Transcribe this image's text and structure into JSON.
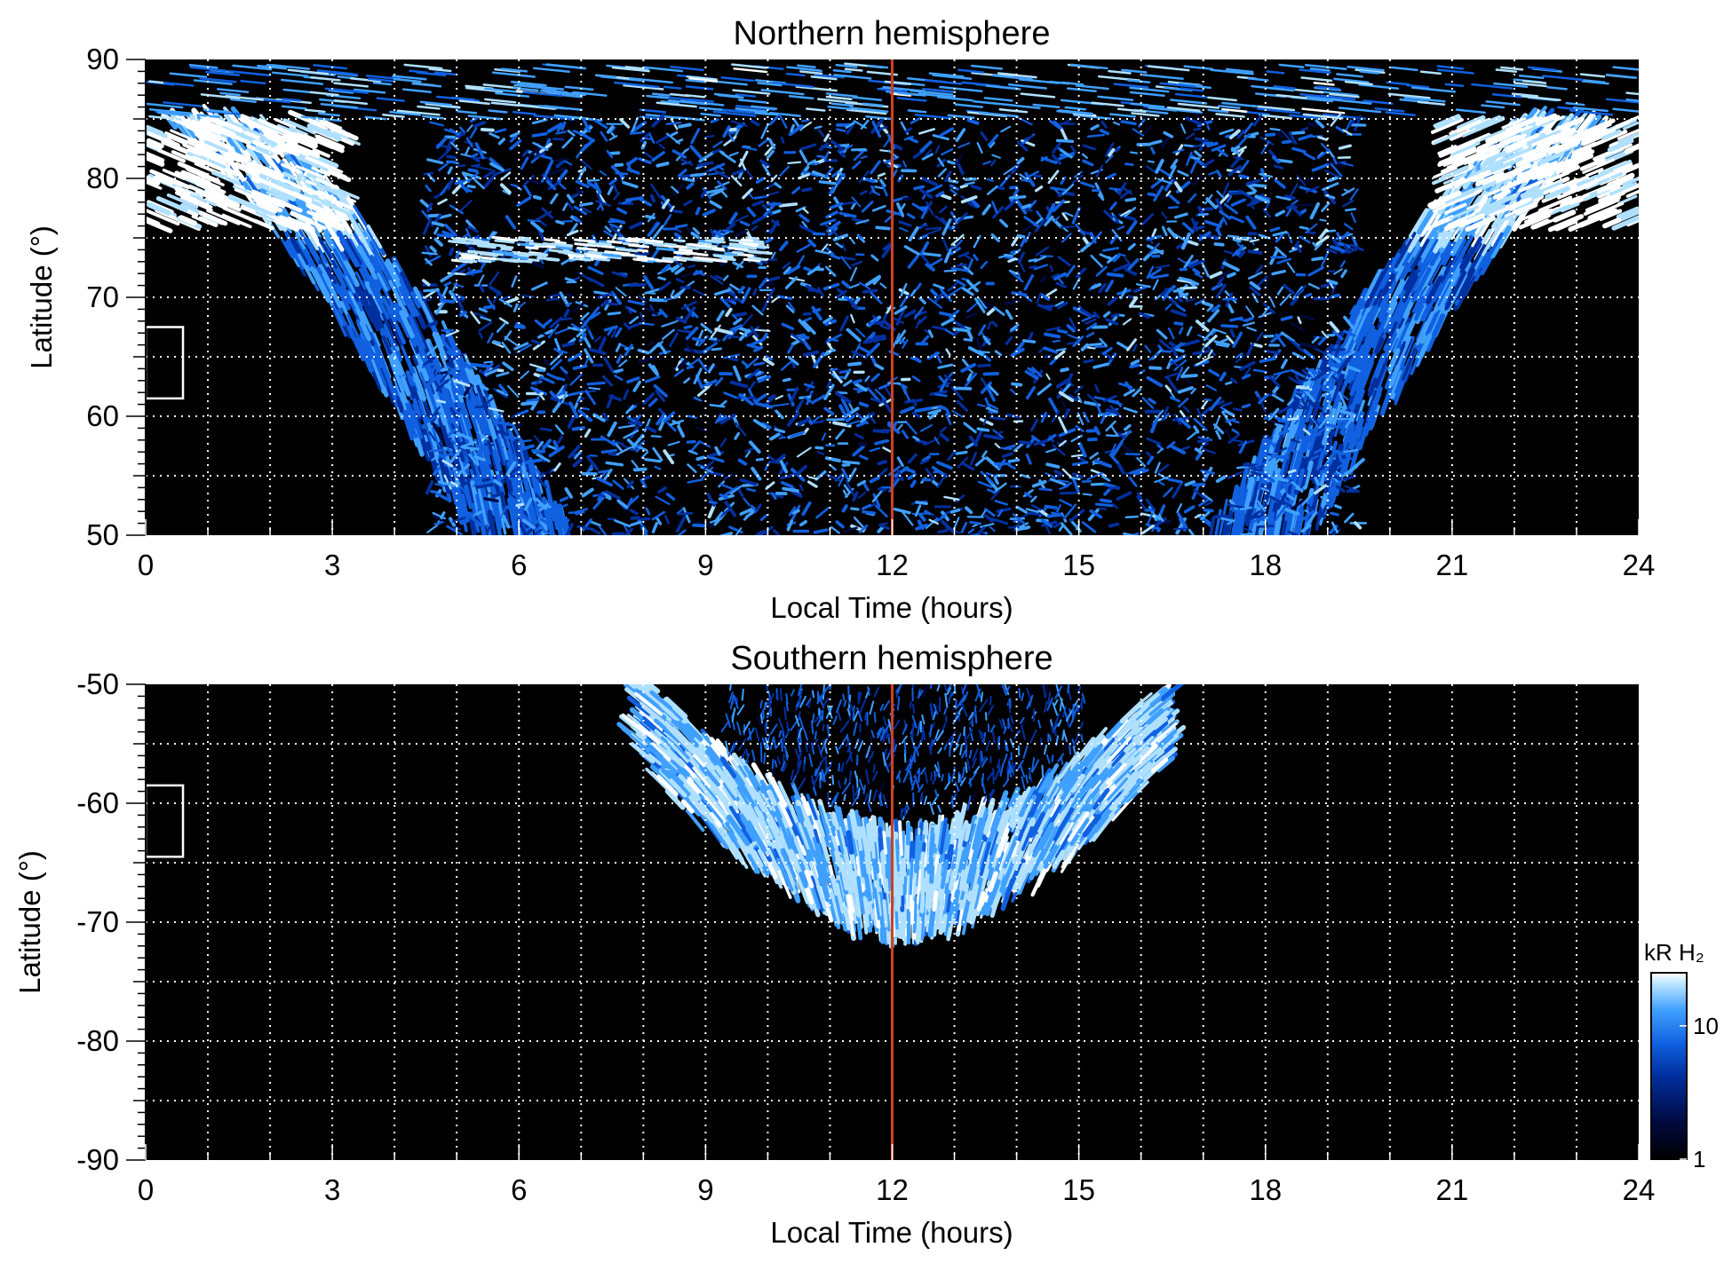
{
  "chart_data": [
    {
      "type": "heatmap",
      "title": "Northern hemisphere",
      "xlabel": "Local Time (hours)",
      "ylabel": "Latitude (°)",
      "xlim": [
        0,
        24
      ],
      "ylim": [
        50,
        90
      ],
      "xticks": [
        0,
        3,
        6,
        9,
        12,
        15,
        18,
        21,
        24
      ],
      "yticks": [
        50,
        60,
        70,
        80,
        90
      ],
      "ygrid": [
        55,
        65,
        75,
        85
      ],
      "xgrid_step_hours": 1,
      "grid": "dotted-white",
      "marker_line_x": 12,
      "marker_line_color": "#d04020",
      "box_region": {
        "x": [
          0,
          0.6
        ],
        "y": [
          61.5,
          67.5
        ]
      },
      "emission_regions": [
        {
          "name": "dawn auroral arc",
          "description": "bright band from LT 0 (lat 85-76) curving down to LT 5-6 at lat 50"
        },
        {
          "name": "dusk auroral arc",
          "description": "bright band from LT 24 (lat 85-76) curving down to LT 18-19 at lat 50"
        },
        {
          "name": "dayside diffuse emission",
          "description": "patchy weak emission between LT 5 and 19"
        }
      ]
    },
    {
      "type": "heatmap",
      "title": "Southern hemisphere",
      "xlabel": "Local Time (hours)",
      "ylabel": "Latitude (°)",
      "xlim": [
        0,
        24
      ],
      "ylim": [
        -90,
        -50
      ],
      "xticks": [
        0,
        3,
        6,
        9,
        12,
        15,
        18,
        21,
        24
      ],
      "yticks": [
        -50,
        -60,
        -70,
        -80,
        -90
      ],
      "ygrid": [
        -55,
        -65,
        -75,
        -85
      ],
      "xgrid_step_hours": 1,
      "grid": "dotted-white",
      "marker_line_x": 12,
      "marker_line_color": "#d04020",
      "box_region": {
        "x": [
          0,
          0.6
        ],
        "y": [
          -64.5,
          -58.5
        ]
      },
      "emission_regions": [
        {
          "name": "auroral oval",
          "description": "U-shaped bright band spanning LT 8-16.5, reaching down to about lat -72 near noon"
        }
      ]
    }
  ],
  "colorbar": {
    "label": "kR H₂",
    "ticks": [
      1,
      10
    ],
    "scale": "log",
    "colors": [
      "#000000",
      "#000a40",
      "#0030a0",
      "#1060e0",
      "#40a0ff",
      "#b0e0ff",
      "#ffffff"
    ]
  }
}
